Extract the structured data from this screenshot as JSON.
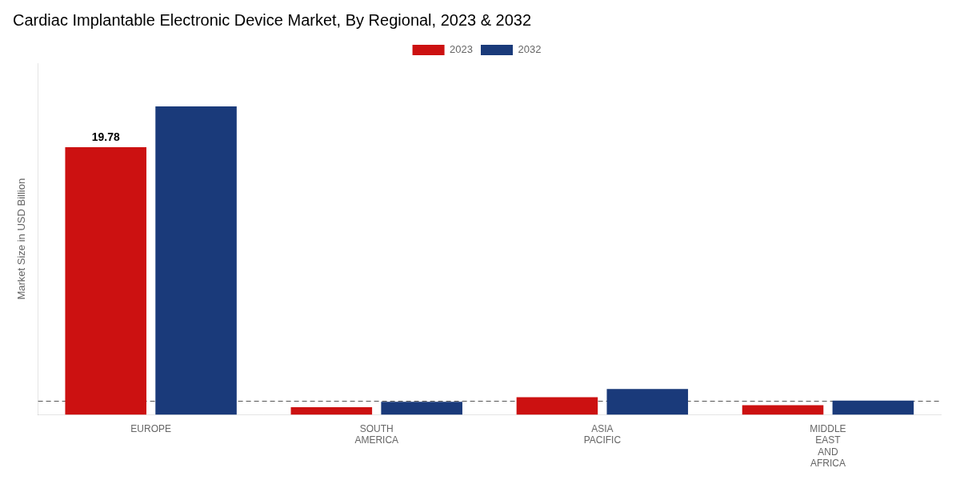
{
  "chart_data": {
    "type": "bar",
    "title": "Cardiac Implantable Electronic Device Market, By Regional, 2023 & 2032",
    "y_label": "Market Size in USD Billion",
    "categories": [
      "EUROPE",
      "SOUTH\nAMERICA",
      "ASIA\nPACIFIC",
      "MIDDLE\nEAST\nAND\nAFRICA"
    ],
    "series": [
      {
        "name": "2023",
        "color": "#cc1111",
        "values": [
          19.78,
          0.55,
          1.3,
          0.7
        ]
      },
      {
        "name": "2032",
        "color": "#1a3a7a",
        "values": [
          22.8,
          0.95,
          1.9,
          1.05
        ]
      }
    ],
    "ylim": [
      0,
      26
    ],
    "grid": false,
    "legend": "top",
    "tick_labels": "x",
    "reference_lines": [
      {
        "y": 1.0,
        "line_style": "dashed"
      }
    ],
    "annotations": [
      {
        "text": "19.78",
        "category": "EUROPE",
        "series": "2023",
        "y": 19.78
      }
    ]
  }
}
